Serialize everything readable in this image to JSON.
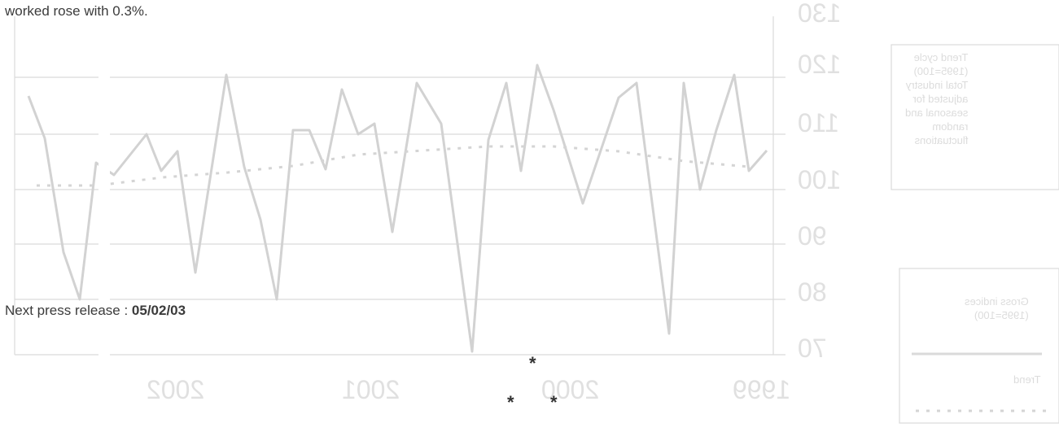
{
  "text": {
    "top_fragment": "worked rose with 0.3%.",
    "next_release_label": "Next press release : ",
    "next_release_date": "05/02/03",
    "footnote_marks": [
      "*",
      "*",
      "*"
    ]
  },
  "show_through": {
    "y_ticks": [
      "130",
      "120",
      "110",
      "100",
      "90",
      "80",
      "70"
    ],
    "x_ticks": [
      "1999",
      "2000",
      "2001",
      "2002"
    ],
    "legend_trend": [
      "Trend cycle",
      "(1995=100)",
      "Total industry",
      "adjusted for",
      "seasonal and",
      "random",
      "fluctuations"
    ],
    "legend_gross": [
      "Gross indices",
      "(1995=100)"
    ],
    "legend_trend_short": "Trend",
    "colors": {
      "ghost_line": "#d2d2d2",
      "ghost_text": "#e0e0e0",
      "text": "#3b3b3b"
    }
  }
}
